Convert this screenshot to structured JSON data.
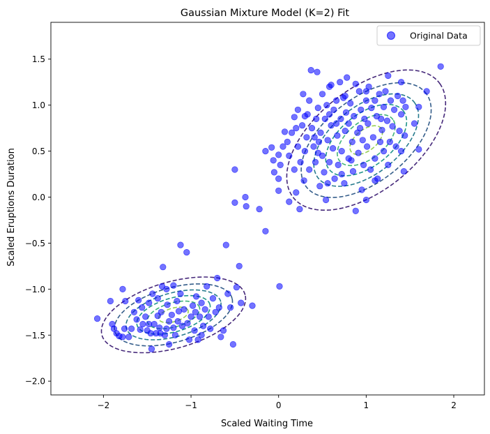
{
  "chart_data": {
    "type": "scatter",
    "title": "Gaussian Mixture Model (K=2) Fit",
    "xlabel": "Scaled Waiting Time",
    "ylabel": "Scaled Eruptions Duration",
    "xlim": [
      -2.6,
      2.35
    ],
    "ylim": [
      -2.15,
      1.9
    ],
    "xticks": [
      -2,
      -1,
      0,
      1,
      2
    ],
    "xtick_labels": [
      "−2",
      "−1",
      "0",
      "1",
      "2"
    ],
    "yticks": [
      -2.0,
      -1.5,
      -1.0,
      -0.5,
      0.0,
      0.5,
      1.0,
      1.5
    ],
    "ytick_labels": [
      "−2.0",
      "−1.5",
      "−1.0",
      "−0.5",
      "0.0",
      "0.5",
      "1.0",
      "1.5"
    ],
    "grid": false,
    "legend": {
      "position": "top-right",
      "entries": [
        "Original Data"
      ]
    },
    "point_color": "#0000ff",
    "point_alpha": 0.55,
    "contour_colors": [
      "#45287a",
      "#345d8a",
      "#277b8e",
      "#21958b",
      "#41b37a",
      "#97cf52"
    ],
    "series": [
      {
        "name": "Original Data",
        "points": [
          [
            -2.07,
            -1.32
          ],
          [
            -1.92,
            -1.13
          ],
          [
            -1.9,
            -1.38
          ],
          [
            -1.88,
            -1.43
          ],
          [
            -1.85,
            -1.48
          ],
          [
            -1.82,
            -1.51
          ],
          [
            -1.78,
            -1.52
          ],
          [
            -1.76,
            -1.43
          ],
          [
            -1.75,
            -1.13
          ],
          [
            -1.78,
            -1.0
          ],
          [
            -1.71,
            -1.52
          ],
          [
            -1.68,
            -1.43
          ],
          [
            -1.65,
            -1.25
          ],
          [
            -1.6,
            -1.12
          ],
          [
            -1.58,
            -1.44
          ],
          [
            -1.56,
            -1.2
          ],
          [
            -1.52,
            -1.3
          ],
          [
            -1.5,
            -1.45
          ],
          [
            -1.48,
            -1.15
          ],
          [
            -1.46,
            -1.48
          ],
          [
            -1.44,
            -1.05
          ],
          [
            -1.42,
            -1.38
          ],
          [
            -1.4,
            -1.48
          ],
          [
            -1.38,
            -1.29
          ],
          [
            -1.38,
            -1.1
          ],
          [
            -1.36,
            -1.42
          ],
          [
            -1.34,
            -1.25
          ],
          [
            -1.33,
            -0.97
          ],
          [
            -1.32,
            -0.76
          ],
          [
            -1.3,
            -1.5
          ],
          [
            -1.28,
            -1.43
          ],
          [
            -1.27,
            -1.17
          ],
          [
            -1.25,
            -1.35
          ],
          [
            -1.22,
            -1.28
          ],
          [
            -1.2,
            -1.42
          ],
          [
            -1.2,
            -0.96
          ],
          [
            -1.18,
            -1.5
          ],
          [
            -1.16,
            -1.13
          ],
          [
            -1.15,
            -1.35
          ],
          [
            -1.12,
            -1.05
          ],
          [
            -1.12,
            -0.52
          ],
          [
            -1.1,
            -1.4
          ],
          [
            -1.08,
            -1.22
          ],
          [
            -1.05,
            -0.6
          ],
          [
            -1.04,
            -1.37
          ],
          [
            -1.0,
            -1.3
          ],
          [
            -0.98,
            -1.18
          ],
          [
            -0.96,
            -1.45
          ],
          [
            -0.94,
            -1.08
          ],
          [
            -0.92,
            -1.55
          ],
          [
            -0.9,
            -1.3
          ],
          [
            -0.88,
            -1.15
          ],
          [
            -0.86,
            -1.4
          ],
          [
            -0.84,
            -1.22
          ],
          [
            -0.82,
            -0.97
          ],
          [
            -0.8,
            -1.3
          ],
          [
            -0.78,
            -1.43
          ],
          [
            -0.75,
            -1.1
          ],
          [
            -0.72,
            -1.25
          ],
          [
            -0.7,
            -0.88
          ],
          [
            -0.68,
            -1.2
          ],
          [
            -0.66,
            -1.52
          ],
          [
            -0.63,
            -1.45
          ],
          [
            -0.6,
            -0.52
          ],
          [
            -0.58,
            -1.05
          ],
          [
            -0.55,
            -1.2
          ],
          [
            -0.52,
            -1.6
          ],
          [
            -0.48,
            -0.98
          ],
          [
            -0.45,
            -0.75
          ],
          [
            -0.43,
            -1.15
          ],
          [
            -0.3,
            -1.18
          ],
          [
            -1.48,
            -1.38
          ],
          [
            -1.55,
            -1.38
          ],
          [
            -1.62,
            -1.33
          ],
          [
            -1.35,
            -1.48
          ],
          [
            -1.45,
            -1.65
          ],
          [
            -1.25,
            -1.6
          ],
          [
            -1.02,
            -1.55
          ],
          [
            -0.95,
            -1.25
          ],
          [
            -0.88,
            -1.5
          ],
          [
            -1.14,
            -1.24
          ],
          [
            -1.28,
            -1.0
          ],
          [
            -0.5,
            -0.06
          ],
          [
            -0.5,
            0.3
          ],
          [
            -0.38,
            0.0
          ],
          [
            -0.37,
            -0.1
          ],
          [
            -0.22,
            -0.13
          ],
          [
            -0.15,
            -0.37
          ],
          [
            0.01,
            -0.97
          ],
          [
            -0.15,
            0.5
          ],
          [
            -0.08,
            0.54
          ],
          [
            -0.06,
            0.4
          ],
          [
            -0.05,
            0.27
          ],
          [
            0.0,
            0.46
          ],
          [
            0.0,
            0.2
          ],
          [
            0.0,
            0.07
          ],
          [
            0.02,
            0.35
          ],
          [
            0.05,
            0.55
          ],
          [
            0.07,
            0.71
          ],
          [
            0.1,
            0.6
          ],
          [
            0.12,
            0.45
          ],
          [
            0.12,
            -0.05
          ],
          [
            0.15,
            0.7
          ],
          [
            0.18,
            0.87
          ],
          [
            0.18,
            0.3
          ],
          [
            0.2,
            0.05
          ],
          [
            0.22,
            0.95
          ],
          [
            0.22,
            0.55
          ],
          [
            0.24,
            -0.13
          ],
          [
            0.25,
            0.38
          ],
          [
            0.27,
            0.78
          ],
          [
            0.28,
            1.12
          ],
          [
            0.29,
            0.18
          ],
          [
            0.3,
            0.5
          ],
          [
            0.32,
            0.65
          ],
          [
            0.33,
            0.9
          ],
          [
            0.35,
            1.05
          ],
          [
            0.35,
            0.3
          ],
          [
            0.37,
            1.38
          ],
          [
            0.38,
            0.75
          ],
          [
            0.4,
            0.55
          ],
          [
            0.42,
            0.38
          ],
          [
            0.43,
            0.85
          ],
          [
            0.44,
            1.36
          ],
          [
            0.45,
            0.97
          ],
          [
            0.46,
            0.6
          ],
          [
            0.47,
            0.12
          ],
          [
            0.48,
            0.7
          ],
          [
            0.5,
            1.12
          ],
          [
            0.5,
            0.45
          ],
          [
            0.52,
            0.27
          ],
          [
            0.53,
            0.85
          ],
          [
            0.54,
            -0.03
          ],
          [
            0.55,
            1.0
          ],
          [
            0.56,
            0.62
          ],
          [
            0.58,
            0.38
          ],
          [
            0.58,
            1.2
          ],
          [
            0.6,
            0.78
          ],
          [
            0.62,
            0.53
          ],
          [
            0.63,
            0.95
          ],
          [
            0.64,
            0.2
          ],
          [
            0.66,
            1.05
          ],
          [
            0.67,
            0.67
          ],
          [
            0.68,
            0.35
          ],
          [
            0.7,
            1.25
          ],
          [
            0.71,
            0.85
          ],
          [
            0.72,
            0.5
          ],
          [
            0.74,
            1.08
          ],
          [
            0.75,
            0.15
          ],
          [
            0.76,
            0.72
          ],
          [
            0.77,
            0.92
          ],
          [
            0.78,
            1.3
          ],
          [
            0.8,
            0.42
          ],
          [
            0.8,
            0.8
          ],
          [
            0.82,
            1.02
          ],
          [
            0.84,
            0.6
          ],
          [
            0.85,
            0.28
          ],
          [
            0.86,
            0.88
          ],
          [
            0.88,
            1.23
          ],
          [
            0.88,
            -0.15
          ],
          [
            0.9,
            0.7
          ],
          [
            0.91,
            0.48
          ],
          [
            0.92,
            1.15
          ],
          [
            0.94,
            0.95
          ],
          [
            0.95,
            0.08
          ],
          [
            0.96,
            0.62
          ],
          [
            0.97,
            0.35
          ],
          [
            0.98,
            0.85
          ],
          [
            1.0,
            1.05
          ],
          [
            1.01,
            0.55
          ],
          [
            1.02,
            0.8
          ],
          [
            1.03,
            1.2
          ],
          [
            1.05,
            0.3
          ],
          [
            1.06,
            0.97
          ],
          [
            1.08,
            0.65
          ],
          [
            1.1,
            0.42
          ],
          [
            1.1,
            1.05
          ],
          [
            1.12,
            0.88
          ],
          [
            1.13,
            0.2
          ],
          [
            1.15,
            1.12
          ],
          [
            1.16,
            0.6
          ],
          [
            1.18,
            0.73
          ],
          [
            1.2,
            0.5
          ],
          [
            1.2,
            0.98
          ],
          [
            1.22,
            1.15
          ],
          [
            1.24,
            0.83
          ],
          [
            1.25,
            0.35
          ],
          [
            1.27,
            0.6
          ],
          [
            1.28,
            1.05
          ],
          [
            1.3,
            0.77
          ],
          [
            1.32,
            0.95
          ],
          [
            1.34,
            0.55
          ],
          [
            1.36,
            1.1
          ],
          [
            1.38,
            0.72
          ],
          [
            1.4,
            0.9
          ],
          [
            1.4,
            0.5
          ],
          [
            1.4,
            1.25
          ],
          [
            1.42,
            1.05
          ],
          [
            1.43,
            0.28
          ],
          [
            1.44,
            0.67
          ],
          [
            1.55,
            0.8
          ],
          [
            1.6,
            0.52
          ],
          [
            1.6,
            0.98
          ],
          [
            1.69,
            1.15
          ],
          [
            1.85,
            1.42
          ],
          [
            1.0,
            1.15
          ],
          [
            0.76,
            1.1
          ],
          [
            0.58,
            0.9
          ],
          [
            0.41,
            0.65
          ],
          [
            0.66,
            0.8
          ],
          [
            0.83,
            0.4
          ],
          [
            1.1,
            0.18
          ],
          [
            1.0,
            -0.03
          ],
          [
            0.3,
            0.88
          ],
          [
            0.2,
            0.75
          ],
          [
            0.45,
            0.48
          ],
          [
            0.56,
            0.15
          ],
          [
            0.72,
            0.25
          ],
          [
            0.93,
            0.75
          ],
          [
            1.17,
            0.85
          ],
          [
            1.45,
            0.98
          ],
          [
            1.25,
            1.32
          ],
          [
            0.6,
            1.22
          ]
        ]
      }
    ],
    "components": [
      {
        "mean": [
          1.0,
          0.62
        ],
        "cov": [
          [
            0.17,
            0.075
          ],
          [
            0.075,
            0.12
          ]
        ]
      },
      {
        "mean": [
          -1.2,
          -1.28
        ],
        "cov": [
          [
            0.14,
            0.03
          ],
          [
            0.03,
            0.035
          ]
        ]
      }
    ]
  }
}
